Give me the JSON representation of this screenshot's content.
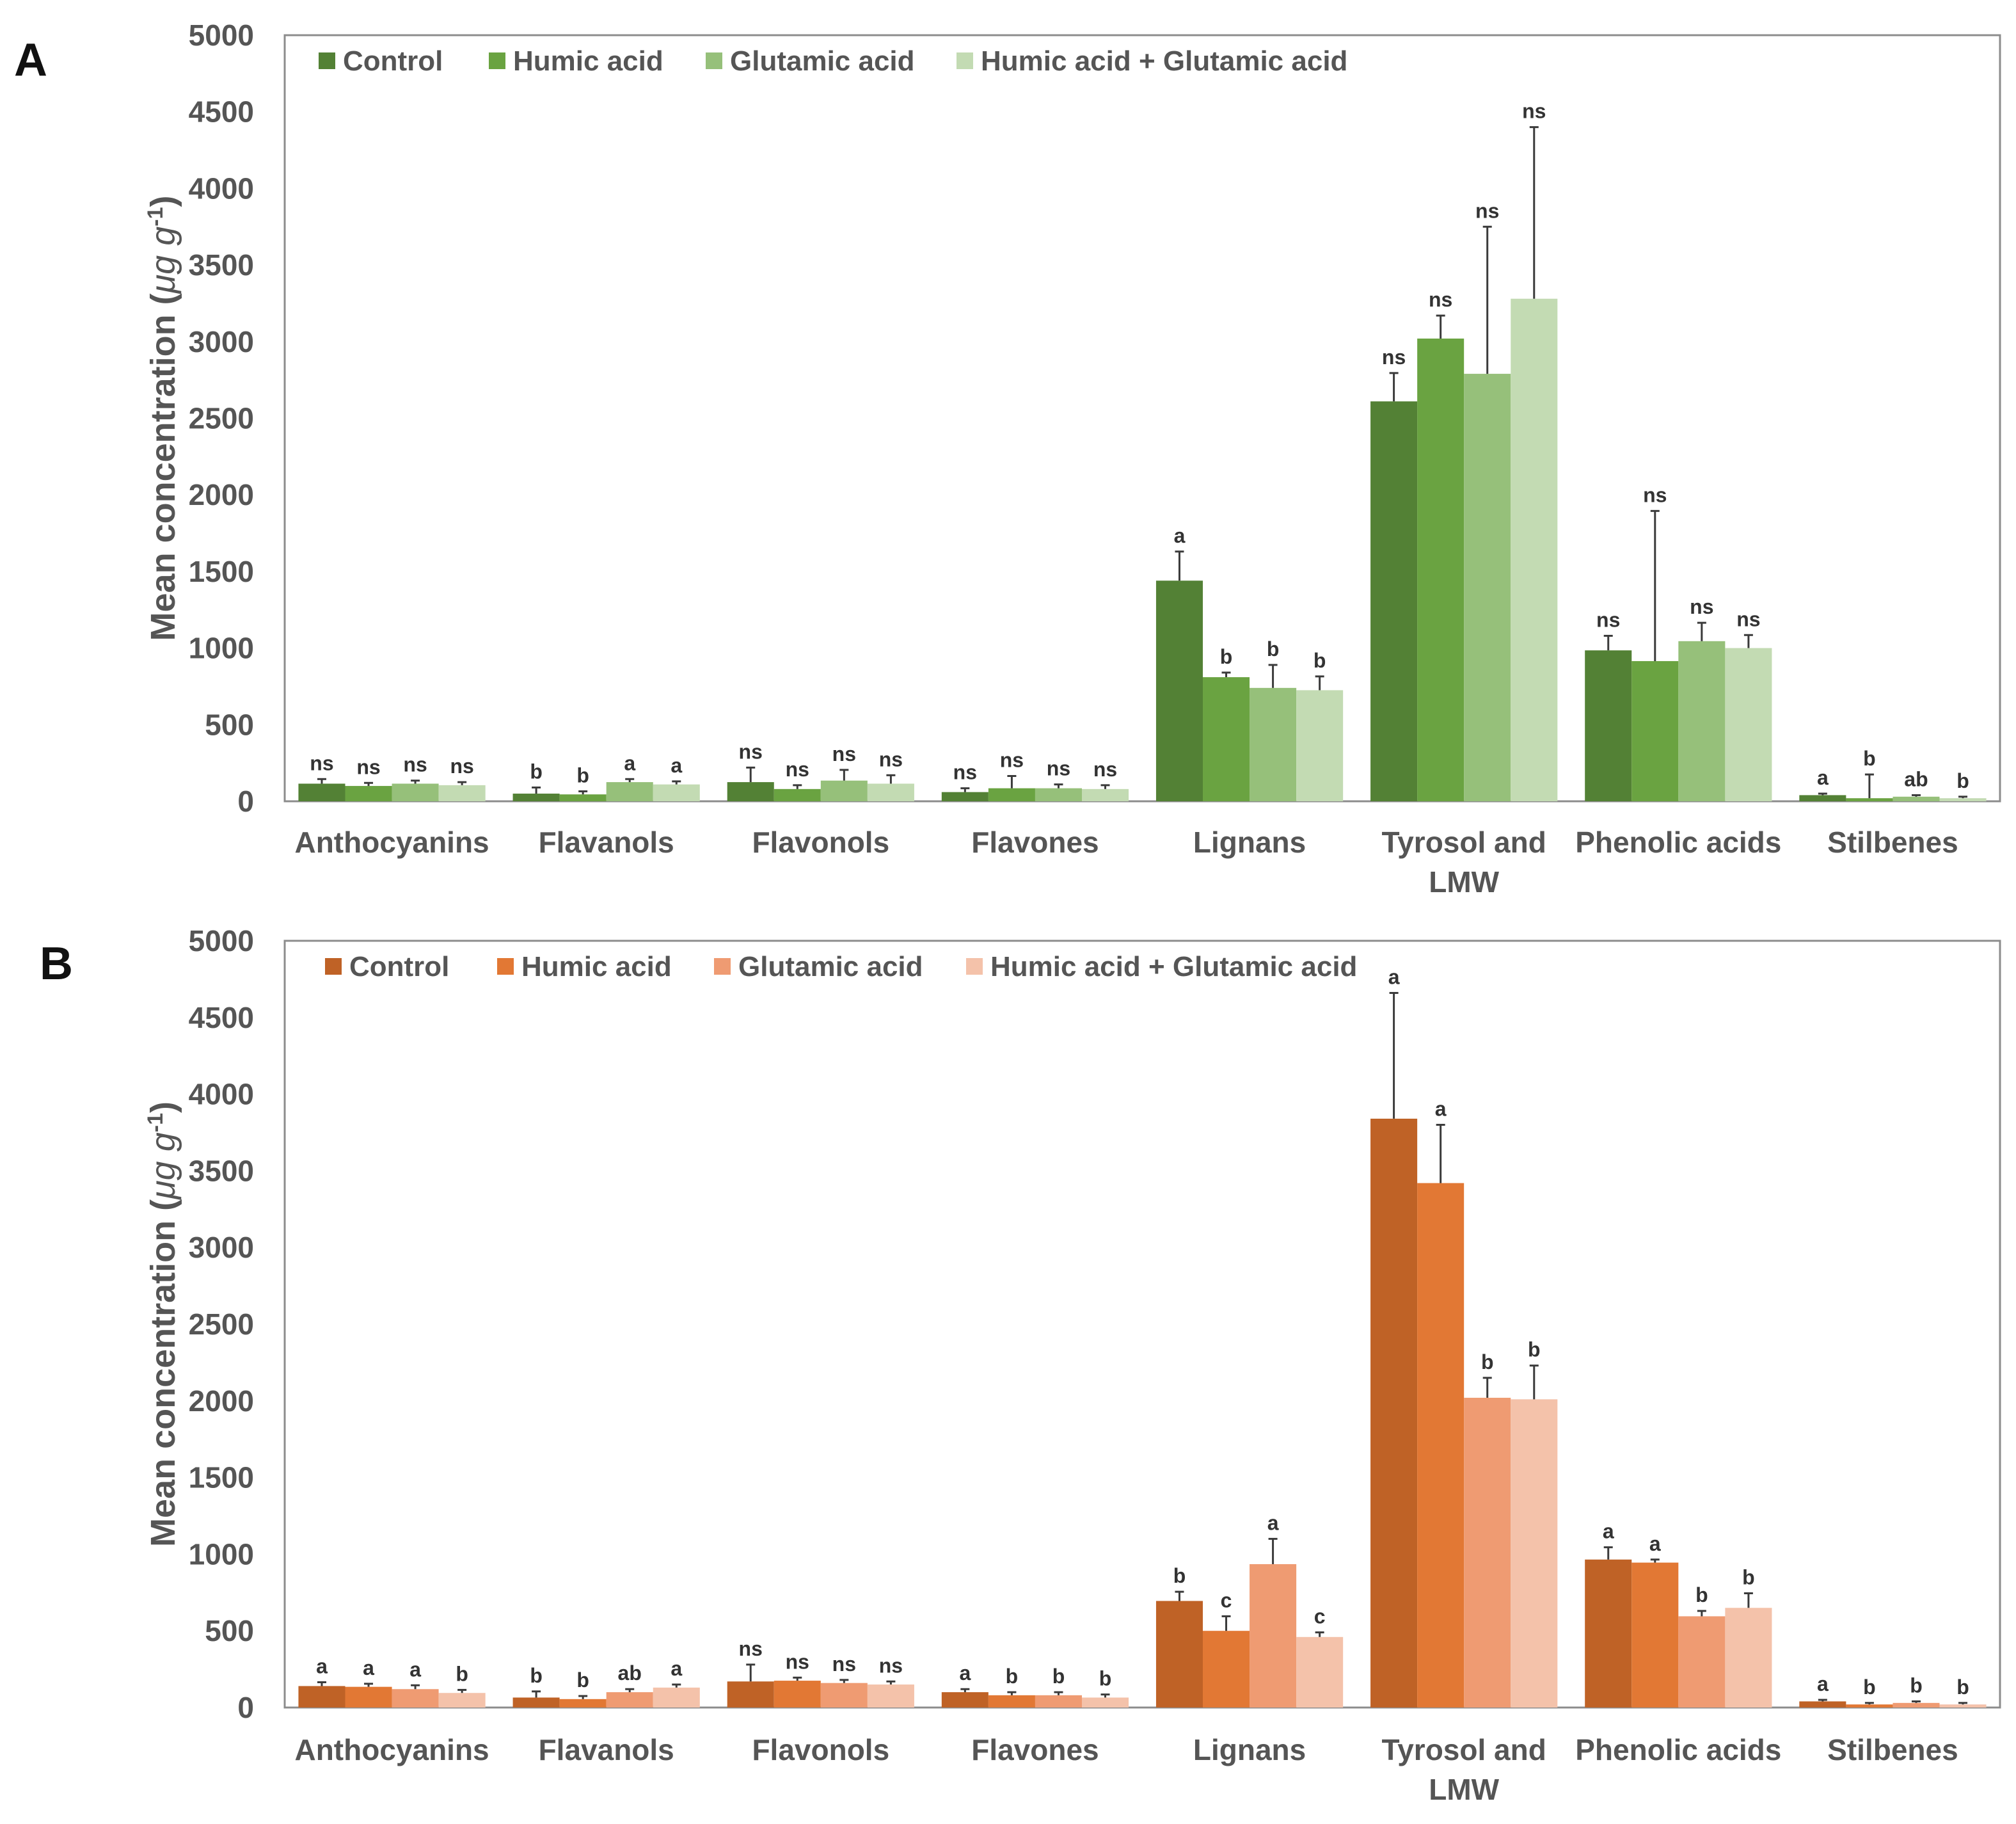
{
  "chart_data": [
    {
      "panel": "A",
      "type": "bar",
      "ylabel": "Mean concentration (μg g-1)",
      "ylabel_parts": [
        "Mean concentration (",
        "μg g",
        "-1",
        ")"
      ],
      "ylim": [
        0,
        5000
      ],
      "yticks": [
        0,
        500,
        1000,
        1500,
        2000,
        2500,
        3000,
        3500,
        4000,
        4500,
        5000
      ],
      "categories": [
        "Anthocyanins",
        "Flavanols",
        "Flavonols",
        "Flavones",
        "Lignans",
        "Tyrosol and LMW",
        "Phenolic acids",
        "Stilbenes"
      ],
      "category_lines": [
        [
          "Anthocyanins"
        ],
        [
          "Flavanols"
        ],
        [
          "Flavonols"
        ],
        [
          "Flavones"
        ],
        [
          "Lignans"
        ],
        [
          "Tyrosol and",
          "LMW"
        ],
        [
          "Phenolic acids"
        ],
        [
          "Stilbenes"
        ]
      ],
      "legend_position": "top-left",
      "series": [
        {
          "name": "Control",
          "color": "#538135",
          "values": [
            115,
            50,
            125,
            60,
            1440,
            2610,
            985,
            40
          ],
          "errors": [
            30,
            40,
            95,
            25,
            190,
            185,
            95,
            10
          ],
          "labels": [
            "ns",
            "b",
            "ns",
            "ns",
            "a",
            "ns",
            "ns",
            "a"
          ]
        },
        {
          "name": "Humic acid",
          "color": "#6aa341",
          "values": [
            100,
            45,
            80,
            85,
            810,
            3020,
            915,
            20
          ],
          "errors": [
            20,
            20,
            25,
            80,
            30,
            150,
            980,
            155
          ],
          "labels": [
            "ns",
            "b",
            "ns",
            "ns",
            "b",
            "ns",
            "ns",
            "b"
          ]
        },
        {
          "name": "Glutamic acid",
          "color": "#96c07a",
          "values": [
            115,
            125,
            135,
            85,
            740,
            2790,
            1045,
            30
          ],
          "errors": [
            20,
            20,
            70,
            25,
            150,
            960,
            120,
            10
          ],
          "labels": [
            "ns",
            "a",
            "ns",
            "ns",
            "b",
            "ns",
            "ns",
            "ab"
          ]
        },
        {
          "name": "Humic acid + Glutamic acid",
          "color": "#c3dbb3",
          "values": [
            105,
            110,
            115,
            80,
            725,
            3280,
            1000,
            20
          ],
          "errors": [
            20,
            20,
            55,
            25,
            90,
            1120,
            85,
            10
          ],
          "labels": [
            "ns",
            "a",
            "ns",
            "ns",
            "b",
            "ns",
            "ns",
            "b"
          ]
        }
      ]
    },
    {
      "panel": "B",
      "type": "bar",
      "ylabel": "Mean concentration (μg g-1)",
      "ylabel_parts": [
        "Mean concentration (",
        "μg g",
        "-1",
        ")"
      ],
      "ylim": [
        0,
        5000
      ],
      "yticks": [
        0,
        500,
        1000,
        1500,
        2000,
        2500,
        3000,
        3500,
        4000,
        4500,
        5000
      ],
      "categories": [
        "Anthocyanins",
        "Flavanols",
        "Flavonols",
        "Flavones",
        "Lignans",
        "Tyrosol and LMW",
        "Phenolic acids",
        "Stilbenes"
      ],
      "category_lines": [
        [
          "Anthocyanins"
        ],
        [
          "Flavanols"
        ],
        [
          "Flavonols"
        ],
        [
          "Flavones"
        ],
        [
          "Lignans"
        ],
        [
          "Tyrosol and",
          "LMW"
        ],
        [
          "Phenolic acids"
        ],
        [
          "Stilbenes"
        ]
      ],
      "legend_position": "top-left",
      "series": [
        {
          "name": "Control",
          "color": "#bf6226",
          "values": [
            140,
            65,
            170,
            100,
            695,
            3840,
            965,
            40
          ],
          "errors": [
            25,
            40,
            110,
            20,
            60,
            820,
            80,
            10
          ],
          "labels": [
            "a",
            "b",
            "ns",
            "a",
            "b",
            "a",
            "a",
            "a"
          ]
        },
        {
          "name": "Humic acid",
          "color": "#e27834",
          "values": [
            135,
            55,
            175,
            80,
            500,
            3420,
            945,
            20
          ],
          "errors": [
            20,
            20,
            20,
            20,
            95,
            380,
            20,
            10
          ],
          "labels": [
            "a",
            "b",
            "ns",
            "b",
            "c",
            "a",
            "a",
            "b"
          ]
        },
        {
          "name": "Glutamic acid",
          "color": "#ef9b72",
          "values": [
            120,
            100,
            160,
            80,
            935,
            2020,
            595,
            30
          ],
          "errors": [
            25,
            20,
            20,
            20,
            165,
            130,
            35,
            10
          ],
          "labels": [
            "a",
            "ab",
            "ns",
            "b",
            "a",
            "b",
            "b",
            "b"
          ]
        },
        {
          "name": "Humic acid + Glutamic acid",
          "color": "#f4c2aa",
          "values": [
            95,
            130,
            150,
            65,
            460,
            2010,
            650,
            20
          ],
          "errors": [
            20,
            20,
            20,
            20,
            30,
            220,
            95,
            10
          ],
          "labels": [
            "b",
            "a",
            "ns",
            "b",
            "c",
            "b",
            "b",
            "b"
          ]
        }
      ]
    }
  ]
}
